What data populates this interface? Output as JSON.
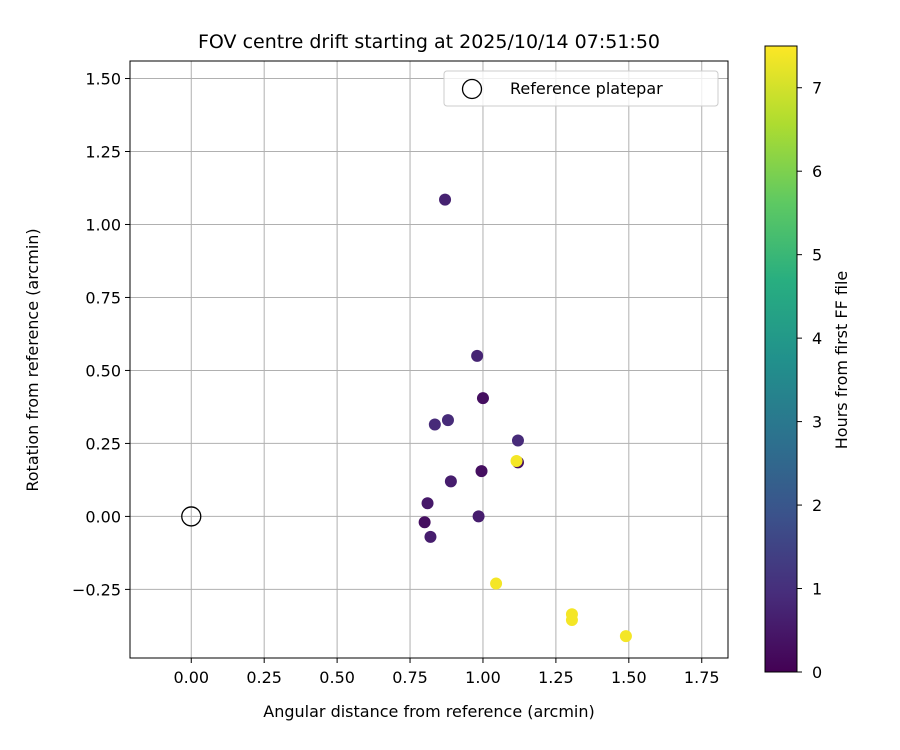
{
  "chart_data": {
    "type": "scatter",
    "title": "FOV centre drift starting at 2025/10/14 07:51:50",
    "xlabel": "Angular distance from reference (arcmin)",
    "ylabel": "Rotation from reference (arcmin)",
    "xlim": [
      -0.21,
      1.84
    ],
    "ylim": [
      -0.485,
      1.56
    ],
    "xticks": [
      0.0,
      0.25,
      0.5,
      0.75,
      1.0,
      1.25,
      1.5,
      1.75
    ],
    "xtick_labels": [
      "0.00",
      "0.25",
      "0.50",
      "0.75",
      "1.00",
      "1.25",
      "1.50",
      "1.75"
    ],
    "yticks": [
      -0.25,
      0.0,
      0.25,
      0.5,
      0.75,
      1.0,
      1.25,
      1.5
    ],
    "ytick_labels": [
      "−0.25",
      "0.00",
      "0.25",
      "0.50",
      "0.75",
      "1.00",
      "1.25",
      "1.50"
    ],
    "grid": true,
    "legend": {
      "label": "Reference platepar",
      "placement": "top-right"
    },
    "reference_point": {
      "x": 0.0,
      "y": 0.0
    },
    "colorbar": {
      "label": "Hours from first FF file",
      "colormap": "viridis",
      "min": 0,
      "max": 7.5,
      "ticks": [
        0,
        1,
        2,
        3,
        4,
        5,
        6,
        7
      ],
      "tick_labels": [
        "0",
        "1",
        "2",
        "3",
        "4",
        "5",
        "6",
        "7"
      ]
    },
    "points": [
      {
        "x": 0.87,
        "y": 1.085,
        "hours": 0.7
      },
      {
        "x": 0.98,
        "y": 0.55,
        "hours": 0.75
      },
      {
        "x": 1.0,
        "y": 0.405,
        "hours": 0.3
      },
      {
        "x": 0.835,
        "y": 0.315,
        "hours": 0.9
      },
      {
        "x": 0.88,
        "y": 0.33,
        "hours": 0.9
      },
      {
        "x": 1.12,
        "y": 0.26,
        "hours": 0.9
      },
      {
        "x": 1.12,
        "y": 0.185,
        "hours": 0.3
      },
      {
        "x": 1.115,
        "y": 0.19,
        "hours": 7.4
      },
      {
        "x": 0.995,
        "y": 0.155,
        "hours": 0.3
      },
      {
        "x": 0.89,
        "y": 0.12,
        "hours": 0.6
      },
      {
        "x": 0.81,
        "y": 0.045,
        "hours": 0.5
      },
      {
        "x": 0.985,
        "y": 0.0,
        "hours": 0.6
      },
      {
        "x": 0.8,
        "y": -0.02,
        "hours": 0.3
      },
      {
        "x": 0.82,
        "y": -0.07,
        "hours": 0.6
      },
      {
        "x": 1.045,
        "y": -0.23,
        "hours": 7.4
      },
      {
        "x": 1.305,
        "y": -0.335,
        "hours": 7.4
      },
      {
        "x": 1.305,
        "y": -0.355,
        "hours": 7.4
      },
      {
        "x": 1.49,
        "y": -0.41,
        "hours": 7.4
      }
    ]
  }
}
